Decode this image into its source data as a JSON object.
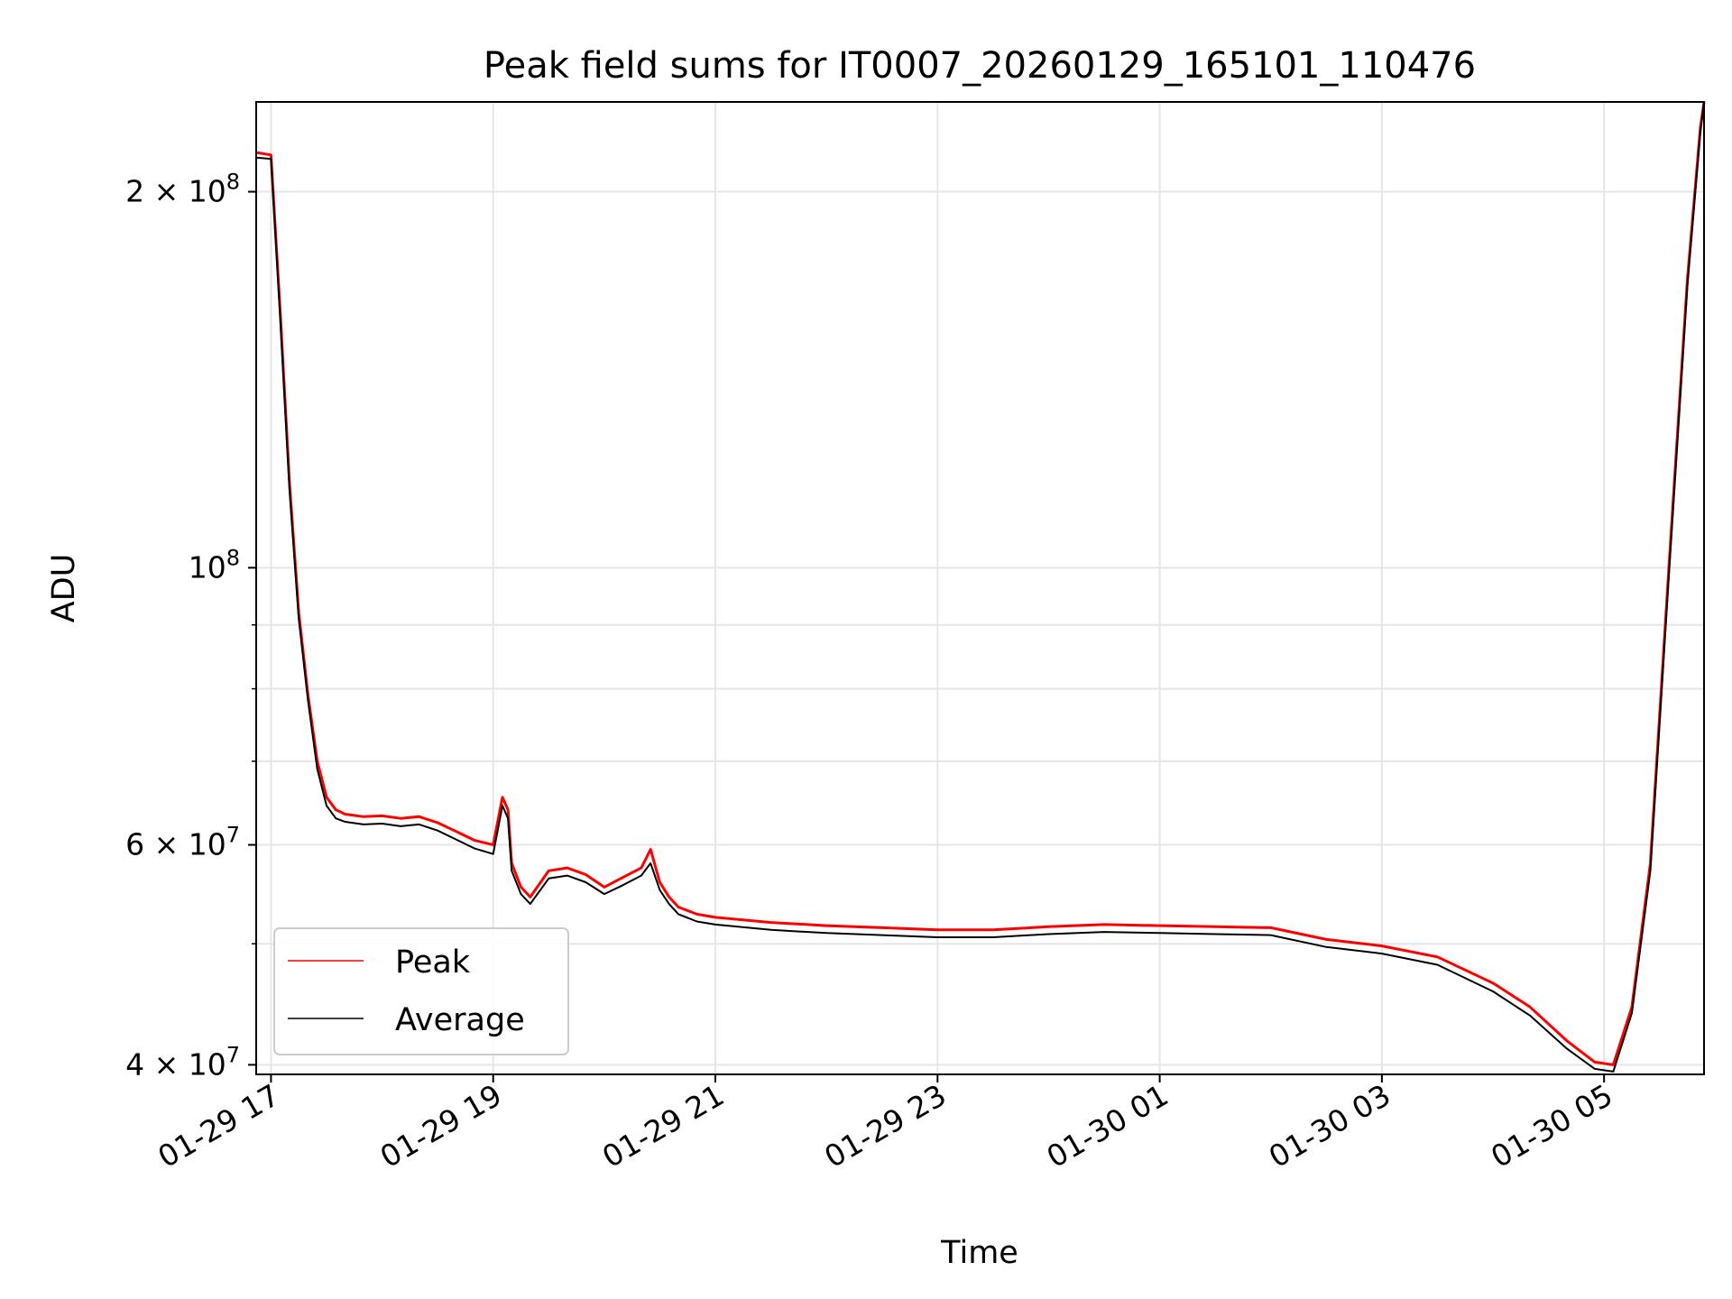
{
  "chart_data": {
    "type": "line",
    "title": "Peak field sums for IT0007_20260129_165101_110476",
    "xlabel": "Time",
    "ylabel": "ADU",
    "y_scale": "log",
    "x_range": [
      "2026-01-29 16:52",
      "2026-01-30 05:54"
    ],
    "ylim": [
      39300000,
      236000000
    ],
    "x_ticks": [
      {
        "t": "2026-01-29 17:00",
        "label": "01-29 17"
      },
      {
        "t": "2026-01-29 19:00",
        "label": "01-29 19"
      },
      {
        "t": "2026-01-29 21:00",
        "label": "01-29 21"
      },
      {
        "t": "2026-01-29 23:00",
        "label": "01-29 23"
      },
      {
        "t": "2026-01-30 01:00",
        "label": "01-30 01"
      },
      {
        "t": "2026-01-30 03:00",
        "label": "01-30 03"
      },
      {
        "t": "2026-01-30 05:00",
        "label": "01-30 05"
      }
    ],
    "y_ticks": [
      {
        "value": 40000000,
        "mantissa": "4",
        "exponent": "7"
      },
      {
        "value": 60000000,
        "mantissa": "6",
        "exponent": "7"
      },
      {
        "value": 100000000,
        "mantissa": "",
        "exponent": "8"
      },
      {
        "value": 200000000,
        "mantissa": "2",
        "exponent": "8"
      }
    ],
    "y_minor_ticks": [
      50000000,
      70000000,
      80000000,
      90000000
    ],
    "grid": true,
    "legend_position": "lower-left",
    "series": [
      {
        "name": "Peak",
        "color": "#ff0000",
        "t": [
          "2026-01-29 16:52",
          "2026-01-29 17:00",
          "2026-01-29 17:05",
          "2026-01-29 17:10",
          "2026-01-29 17:15",
          "2026-01-29 17:20",
          "2026-01-29 17:25",
          "2026-01-29 17:30",
          "2026-01-29 17:35",
          "2026-01-29 17:40",
          "2026-01-29 17:50",
          "2026-01-29 18:00",
          "2026-01-29 18:10",
          "2026-01-29 18:20",
          "2026-01-29 18:30",
          "2026-01-29 18:40",
          "2026-01-29 18:50",
          "2026-01-29 19:00",
          "2026-01-29 19:05",
          "2026-01-29 19:08",
          "2026-01-29 19:10",
          "2026-01-29 19:15",
          "2026-01-29 19:20",
          "2026-01-29 19:30",
          "2026-01-29 19:40",
          "2026-01-29 19:50",
          "2026-01-29 20:00",
          "2026-01-29 20:10",
          "2026-01-29 20:20",
          "2026-01-29 20:25",
          "2026-01-29 20:30",
          "2026-01-29 20:35",
          "2026-01-29 20:40",
          "2026-01-29 20:50",
          "2026-01-29 21:00",
          "2026-01-29 21:30",
          "2026-01-29 22:00",
          "2026-01-29 22:30",
          "2026-01-29 23:00",
          "2026-01-29 23:30",
          "2026-01-30 00:00",
          "2026-01-30 00:30",
          "2026-01-30 01:00",
          "2026-01-30 01:30",
          "2026-01-30 02:00",
          "2026-01-30 02:30",
          "2026-01-30 03:00",
          "2026-01-30 03:30",
          "2026-01-30 04:00",
          "2026-01-30 04:20",
          "2026-01-30 04:40",
          "2026-01-30 04:55",
          "2026-01-30 05:05",
          "2026-01-30 05:15",
          "2026-01-30 05:25",
          "2026-01-30 05:35",
          "2026-01-30 05:45",
          "2026-01-30 05:52",
          "2026-01-30 05:54"
        ],
        "y": [
          215000000,
          214000000,
          160000000,
          117000000,
          92000000,
          79000000,
          70000000,
          65500000,
          64000000,
          63500000,
          63200000,
          63300000,
          63000000,
          63200000,
          62500000,
          61500000,
          60500000,
          60000000,
          65500000,
          64000000,
          58000000,
          55500000,
          54500000,
          57200000,
          57500000,
          56800000,
          55500000,
          56500000,
          57500000,
          59500000,
          56000000,
          54500000,
          53500000,
          52800000,
          52500000,
          52000000,
          51700000,
          51500000,
          51300000,
          51300000,
          51600000,
          51800000,
          51700000,
          51600000,
          51500000,
          50400000,
          49800000,
          48800000,
          46500000,
          44500000,
          41800000,
          40200000,
          40000000,
          44500000,
          58000000,
          100000000,
          170000000,
          225000000,
          236000000
        ]
      },
      {
        "name": "Average",
        "color": "#000000",
        "t": [
          "2026-01-29 16:52",
          "2026-01-29 17:00",
          "2026-01-29 17:05",
          "2026-01-29 17:10",
          "2026-01-29 17:15",
          "2026-01-29 17:20",
          "2026-01-29 17:25",
          "2026-01-29 17:30",
          "2026-01-29 17:35",
          "2026-01-29 17:40",
          "2026-01-29 17:50",
          "2026-01-29 18:00",
          "2026-01-29 18:10",
          "2026-01-29 18:20",
          "2026-01-29 18:30",
          "2026-01-29 18:40",
          "2026-01-29 18:50",
          "2026-01-29 19:00",
          "2026-01-29 19:05",
          "2026-01-29 19:08",
          "2026-01-29 19:10",
          "2026-01-29 19:15",
          "2026-01-29 19:20",
          "2026-01-29 19:30",
          "2026-01-29 19:40",
          "2026-01-29 19:50",
          "2026-01-29 20:00",
          "2026-01-29 20:10",
          "2026-01-29 20:20",
          "2026-01-29 20:25",
          "2026-01-29 20:30",
          "2026-01-29 20:35",
          "2026-01-29 20:40",
          "2026-01-29 20:50",
          "2026-01-29 21:00",
          "2026-01-29 21:30",
          "2026-01-29 22:00",
          "2026-01-29 22:30",
          "2026-01-29 23:00",
          "2026-01-29 23:30",
          "2026-01-30 00:00",
          "2026-01-30 00:30",
          "2026-01-30 01:00",
          "2026-01-30 01:30",
          "2026-01-30 02:00",
          "2026-01-30 02:30",
          "2026-01-30 03:00",
          "2026-01-30 03:30",
          "2026-01-30 04:00",
          "2026-01-30 04:20",
          "2026-01-30 04:40",
          "2026-01-30 04:55",
          "2026-01-30 05:05",
          "2026-01-30 05:15",
          "2026-01-30 05:25",
          "2026-01-30 05:35",
          "2026-01-30 05:45",
          "2026-01-30 05:52",
          "2026-01-30 05:54"
        ],
        "y": [
          213000000,
          212500000,
          158000000,
          115500000,
          91000000,
          78200000,
          69000000,
          64500000,
          63000000,
          62600000,
          62300000,
          62400000,
          62100000,
          62300000,
          61600000,
          60600000,
          59600000,
          59000000,
          64500000,
          63000000,
          57200000,
          54800000,
          53800000,
          56400000,
          56700000,
          56000000,
          54800000,
          55700000,
          56700000,
          58000000,
          55200000,
          53800000,
          52800000,
          52100000,
          51800000,
          51300000,
          51000000,
          50800000,
          50600000,
          50600000,
          50900000,
          51100000,
          51000000,
          50900000,
          50800000,
          49700000,
          49100000,
          48100000,
          45800000,
          43800000,
          41200000,
          39700000,
          39500000,
          44000000,
          57200000,
          98500000,
          168000000,
          223000000,
          236000000
        ]
      }
    ]
  }
}
